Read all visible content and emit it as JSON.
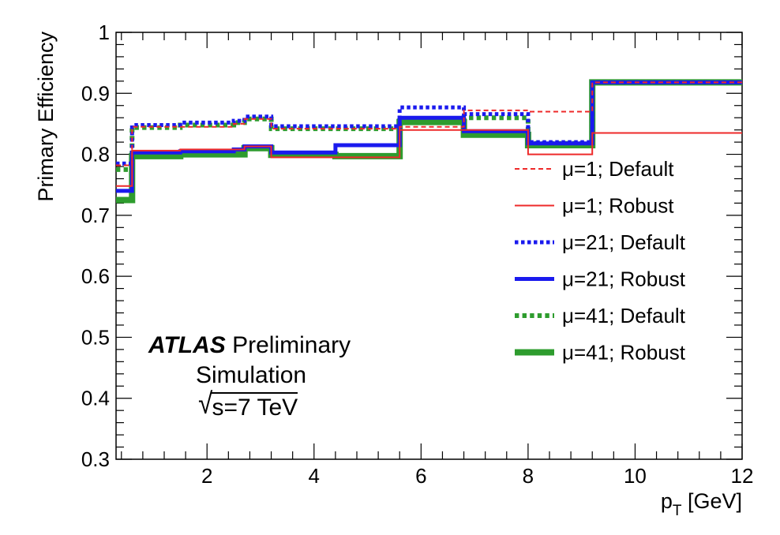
{
  "chart_data": {
    "type": "line",
    "step": true,
    "ylabel": "Primary Efficiency",
    "xlabel_main": "p",
    "xlabel_sub": "T",
    "xlabel_unit": "[GeV]",
    "xlim": [
      0.3,
      12
    ],
    "ylim": [
      0.3,
      1.0
    ],
    "x_ticks": [
      2,
      4,
      6,
      8,
      10,
      12
    ],
    "y_ticks": [
      0.3,
      0.4,
      0.5,
      0.6,
      0.7,
      0.8,
      0.9,
      1
    ],
    "y_tick_labels": [
      "0.3",
      "0.4",
      "0.5",
      "0.6",
      "0.7",
      "0.8",
      "0.9",
      "1"
    ],
    "x_edges": [
      0.3,
      0.6,
      0.8,
      1.5,
      2.5,
      2.7,
      3.2,
      4.4,
      5.6,
      6.8,
      8.0,
      9.2,
      12.0
    ],
    "legend_position": "right",
    "series": [
      {
        "name": "μ=1; Default",
        "color": "#ee2a2a",
        "style": "dashed",
        "width": 2,
        "values": [
          0.782,
          0.845,
          0.845,
          0.845,
          0.85,
          0.858,
          0.842,
          0.842,
          0.845,
          0.872,
          0.87,
          0.918
        ]
      },
      {
        "name": "μ=1; Robust",
        "color": "#ee2a2a",
        "style": "solid",
        "width": 2,
        "values": [
          0.748,
          0.806,
          0.806,
          0.808,
          0.808,
          0.813,
          0.795,
          0.795,
          0.84,
          0.84,
          0.8,
          0.835
        ]
      },
      {
        "name": "μ=21; Default",
        "color": "#1a1aee",
        "style": "dotted",
        "width": 5,
        "values": [
          0.785,
          0.848,
          0.848,
          0.852,
          0.855,
          0.862,
          0.846,
          0.846,
          0.877,
          0.866,
          0.82,
          0.918
        ]
      },
      {
        "name": "μ=21; Robust",
        "color": "#1a1aee",
        "style": "solid",
        "width": 5,
        "values": [
          0.74,
          0.803,
          0.803,
          0.805,
          0.808,
          0.813,
          0.803,
          0.815,
          0.86,
          0.838,
          0.818,
          0.918
        ]
      },
      {
        "name": "μ=41; Default",
        "color": "#2e9c2e",
        "style": "dotted",
        "width": 6,
        "values": [
          0.775,
          0.844,
          0.844,
          0.848,
          0.852,
          0.858,
          0.842,
          0.842,
          0.855,
          0.86,
          0.818,
          0.918
        ]
      },
      {
        "name": "μ=41; Robust",
        "color": "#2e9c2e",
        "style": "solid",
        "width": 8,
        "values": [
          0.725,
          0.797,
          0.797,
          0.8,
          0.8,
          0.81,
          0.799,
          0.797,
          0.853,
          0.832,
          0.815,
          0.918
        ]
      }
    ],
    "annotations": {
      "atlas": "ATLAS",
      "preliminary": "Preliminary",
      "simulation": "Simulation",
      "energy_sqrt": "√",
      "energy": "s=7 TeV"
    }
  }
}
